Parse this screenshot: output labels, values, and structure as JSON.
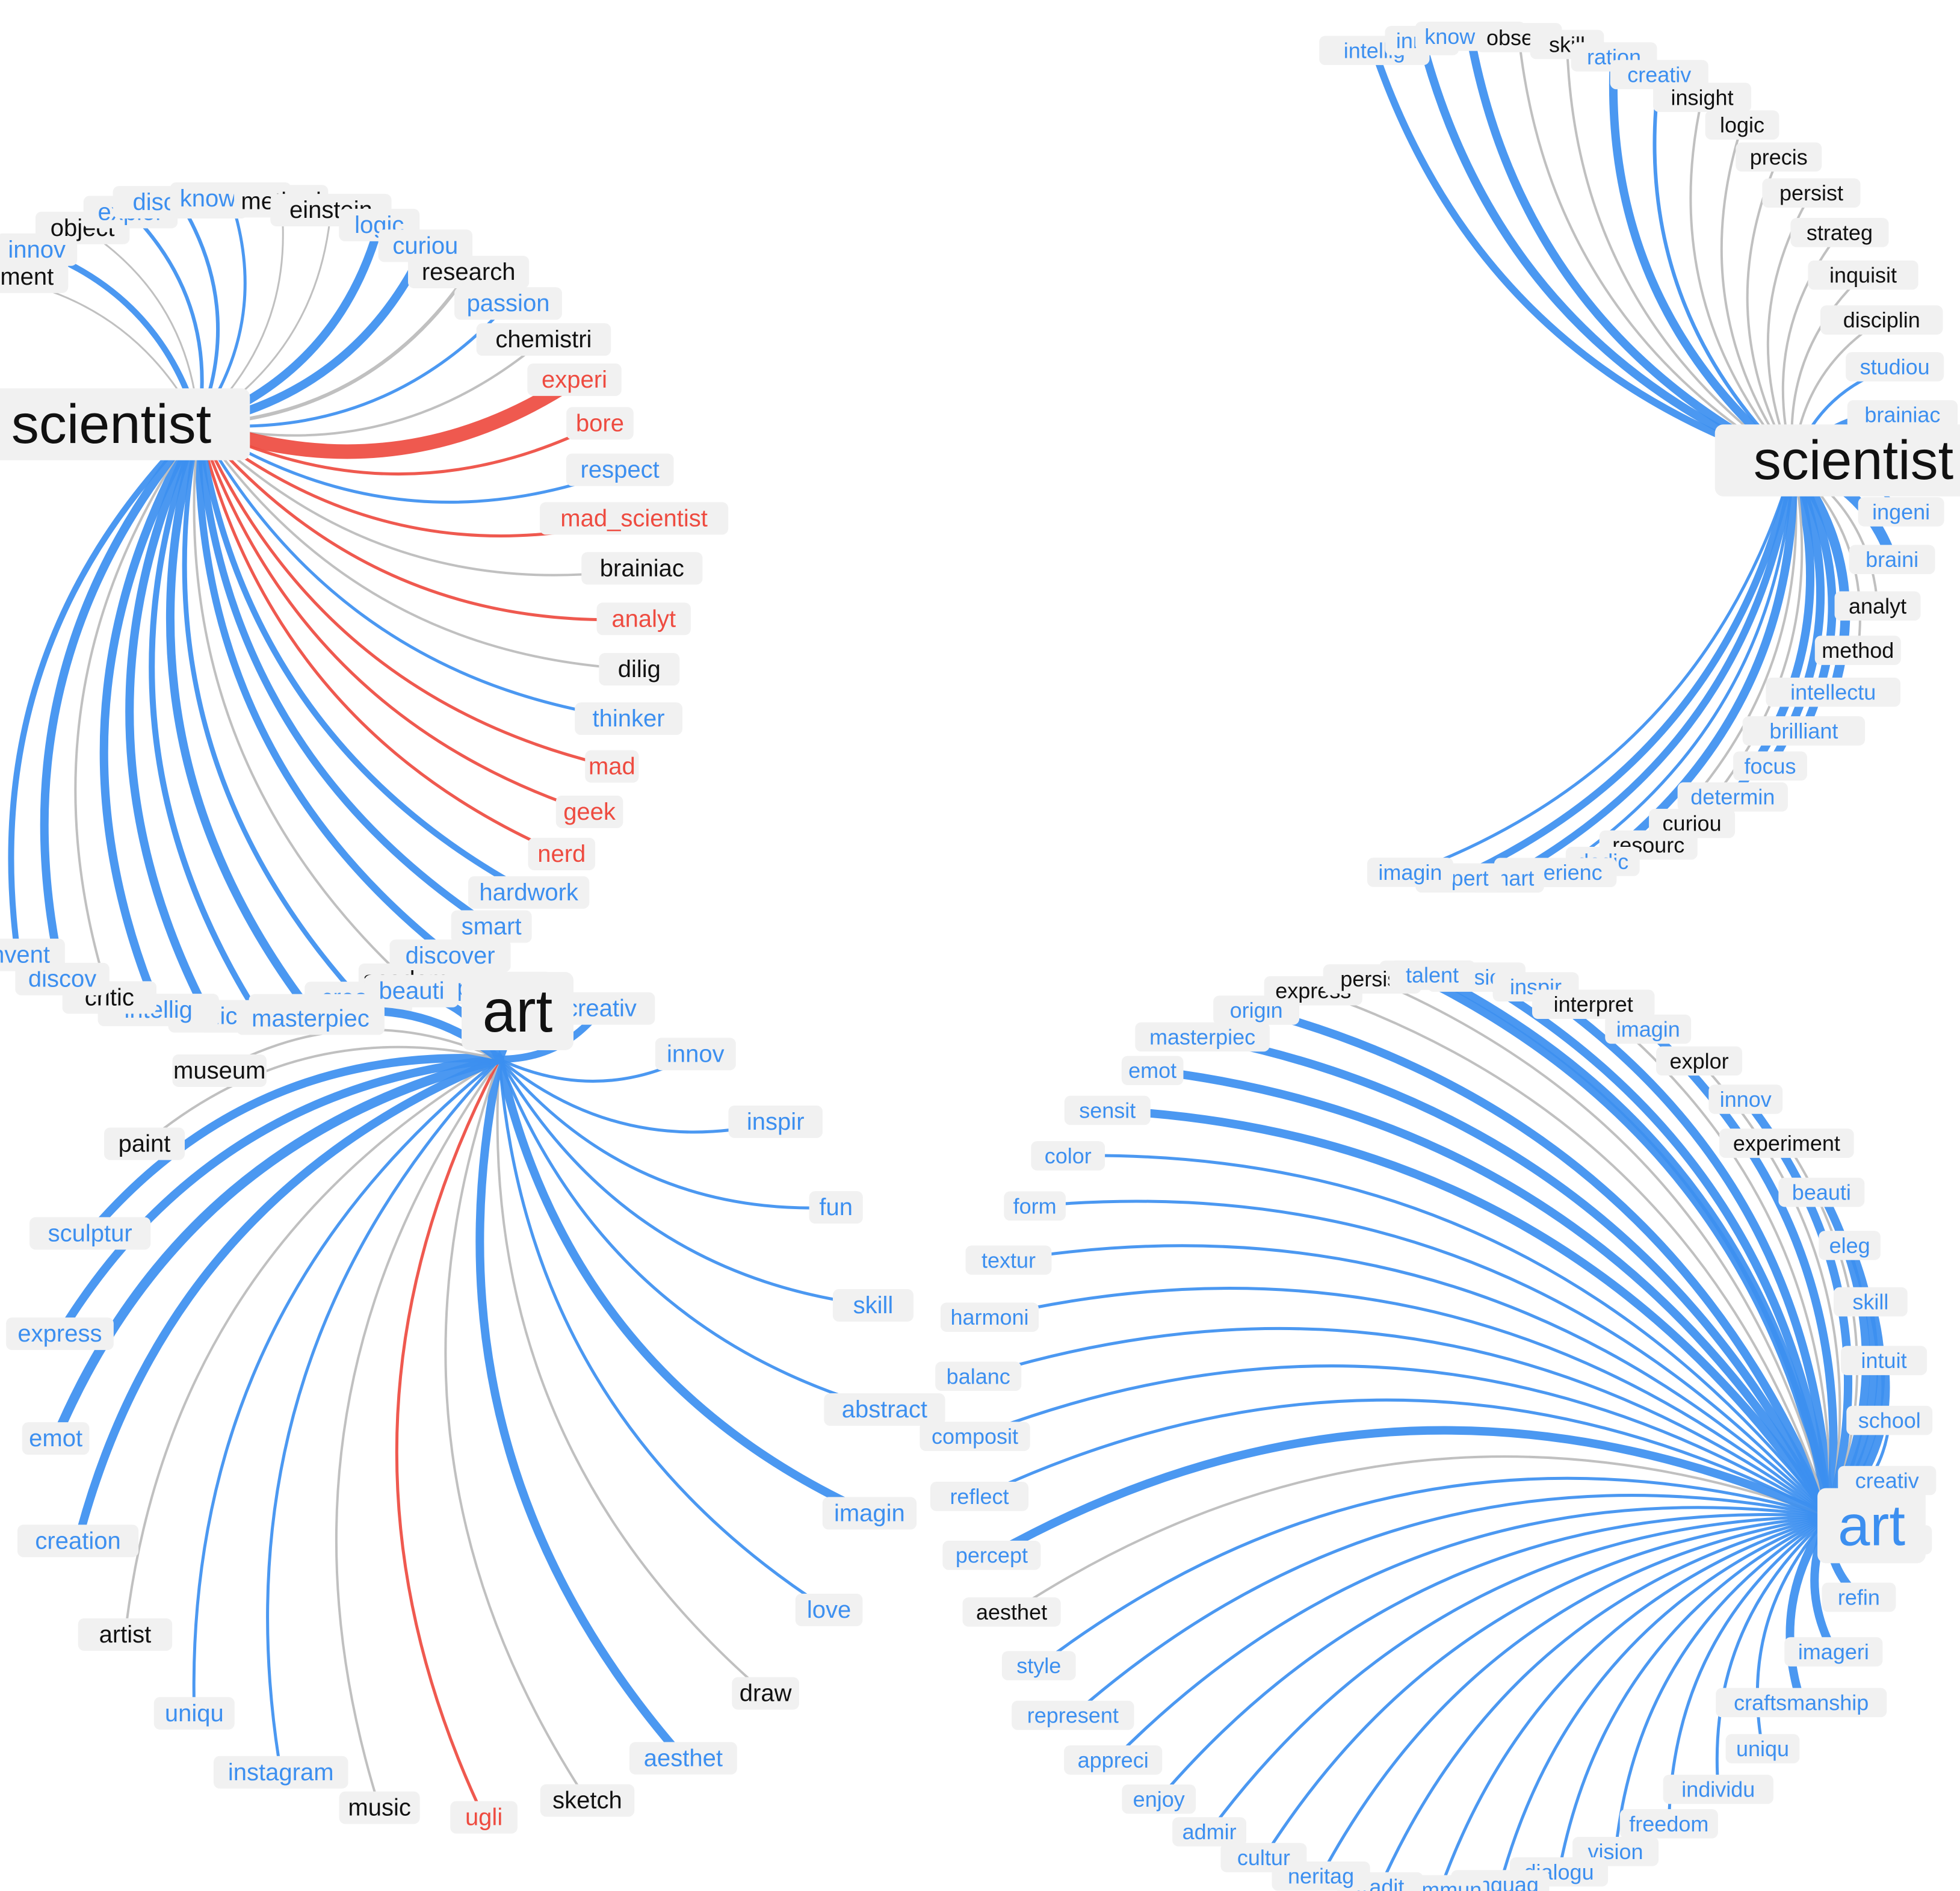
{
  "colors": {
    "positive": "#3c8ff0",
    "negative": "#ee4b40",
    "neutral": "#bdbdbd",
    "text_neutral": "#111111",
    "label_bg": "#f1f1f1"
  },
  "panels": [
    {
      "id": "tl",
      "center": "scientist",
      "center_color": "neutral",
      "words": [
        {
          "t": "experiment",
          "c": "neutral",
          "w": 3
        },
        {
          "t": "innov",
          "c": "positive",
          "w": 10
        },
        {
          "t": "object",
          "c": "neutral",
          "w": 3
        },
        {
          "t": "explor",
          "c": "positive",
          "w": 6
        },
        {
          "t": "discoveri",
          "c": "positive",
          "w": 6
        },
        {
          "t": "knowledg",
          "c": "positive",
          "w": 5
        },
        {
          "t": "method",
          "c": "neutral",
          "w": 3
        },
        {
          "t": "einstein",
          "c": "neutral",
          "w": 3
        },
        {
          "t": "logic",
          "c": "positive",
          "w": 14
        },
        {
          "t": "curiou",
          "c": "positive",
          "w": 14
        },
        {
          "t": "research",
          "c": "neutral",
          "w": 6
        },
        {
          "t": "passion",
          "c": "positive",
          "w": 5
        },
        {
          "t": "chemistri",
          "c": "neutral",
          "w": 4
        },
        {
          "t": "experi",
          "c": "negative",
          "w": 24
        },
        {
          "t": "bore",
          "c": "negative",
          "w": 5
        },
        {
          "t": "respect",
          "c": "positive",
          "w": 5
        },
        {
          "t": "mad_scientist",
          "c": "negative",
          "w": 5
        },
        {
          "t": "brainiac",
          "c": "neutral",
          "w": 4
        },
        {
          "t": "analyt",
          "c": "negative",
          "w": 5
        },
        {
          "t": "dilig",
          "c": "neutral",
          "w": 4
        },
        {
          "t": "thinker",
          "c": "positive",
          "w": 5
        },
        {
          "t": "mad",
          "c": "negative",
          "w": 5
        },
        {
          "t": "geek",
          "c": "negative",
          "w": 5
        },
        {
          "t": "nerd",
          "c": "negative",
          "w": 5
        },
        {
          "t": "hardwork",
          "c": "positive",
          "w": 10
        },
        {
          "t": "smart",
          "c": "positive",
          "w": 12
        },
        {
          "t": "discover",
          "c": "positive",
          "w": 12
        },
        {
          "t": "academ",
          "c": "neutral",
          "w": 4
        },
        {
          "t": "creator",
          "c": "positive",
          "w": 8
        },
        {
          "t": "inventor",
          "c": "positive",
          "w": 14
        },
        {
          "t": "inquisit",
          "c": "positive",
          "w": 10
        },
        {
          "t": "dedic",
          "c": "positive",
          "w": 14
        },
        {
          "t": "intellig",
          "c": "positive",
          "w": 14
        },
        {
          "t": "critic",
          "c": "neutral",
          "w": 4
        },
        {
          "t": "discov",
          "c": "positive",
          "w": 14
        },
        {
          "t": "invent",
          "c": "positive",
          "w": 10
        }
      ]
    },
    {
      "id": "tr",
      "center": "scientist",
      "center_color": "neutral",
      "words": [
        {
          "t": "intellig",
          "c": "positive",
          "w": 12
        },
        {
          "t": "innov",
          "c": "positive",
          "w": 14
        },
        {
          "t": "knowledg",
          "c": "positive",
          "w": 14
        },
        {
          "t": "observ",
          "c": "neutral",
          "w": 4
        },
        {
          "t": "skill",
          "c": "neutral",
          "w": 4
        },
        {
          "t": "ration",
          "c": "positive",
          "w": 14
        },
        {
          "t": "creativ",
          "c": "positive",
          "w": 6
        },
        {
          "t": "insight",
          "c": "neutral",
          "w": 4
        },
        {
          "t": "logic",
          "c": "neutral",
          "w": 4
        },
        {
          "t": "precis",
          "c": "neutral",
          "w": 4
        },
        {
          "t": "persist",
          "c": "neutral",
          "w": 4
        },
        {
          "t": "strateg",
          "c": "neutral",
          "w": 4
        },
        {
          "t": "inquisit",
          "c": "neutral",
          "w": 4
        },
        {
          "t": "disciplin",
          "c": "neutral",
          "w": 4
        },
        {
          "t": "studiou",
          "c": "positive",
          "w": 5
        },
        {
          "t": "brainiac",
          "c": "positive",
          "w": 14
        },
        {
          "t": "effici",
          "c": "positive",
          "w": 6
        },
        {
          "t": "ingeni",
          "c": "positive",
          "w": 6
        },
        {
          "t": "braini",
          "c": "positive",
          "w": 18
        },
        {
          "t": "analyt",
          "c": "neutral",
          "w": 4
        },
        {
          "t": "method",
          "c": "neutral",
          "w": 4
        },
        {
          "t": "intellectu",
          "c": "positive",
          "w": 16
        },
        {
          "t": "brilliant",
          "c": "positive",
          "w": 14
        },
        {
          "t": "focus",
          "c": "positive",
          "w": 14
        },
        {
          "t": "determin",
          "c": "positive",
          "w": 14
        },
        {
          "t": "curiou",
          "c": "neutral",
          "w": 4
        },
        {
          "t": "resourc",
          "c": "neutral",
          "w": 4
        },
        {
          "t": "dedic",
          "c": "positive",
          "w": 14
        },
        {
          "t": "experienc",
          "c": "positive",
          "w": 5
        },
        {
          "t": "smart",
          "c": "positive",
          "w": 12
        },
        {
          "t": "expert",
          "c": "positive",
          "w": 12
        },
        {
          "t": "imagin",
          "c": "positive",
          "w": 5
        }
      ]
    },
    {
      "id": "bl",
      "center": "art",
      "center_color": "neutral",
      "words": [
        {
          "t": "passion",
          "c": "positive",
          "w": 12
        },
        {
          "t": "creativ",
          "c": "positive",
          "w": 12
        },
        {
          "t": "innov",
          "c": "positive",
          "w": 5
        },
        {
          "t": "inspir",
          "c": "positive",
          "w": 5
        },
        {
          "t": "fun",
          "c": "positive",
          "w": 5
        },
        {
          "t": "skill",
          "c": "positive",
          "w": 5
        },
        {
          "t": "abstract",
          "c": "positive",
          "w": 5
        },
        {
          "t": "imagin",
          "c": "positive",
          "w": 14
        },
        {
          "t": "love",
          "c": "positive",
          "w": 5
        },
        {
          "t": "draw",
          "c": "neutral",
          "w": 4
        },
        {
          "t": "aesthet",
          "c": "positive",
          "w": 14
        },
        {
          "t": "sketch",
          "c": "neutral",
          "w": 4
        },
        {
          "t": "ugli",
          "c": "negative",
          "w": 5
        },
        {
          "t": "music",
          "c": "neutral",
          "w": 4
        },
        {
          "t": "instagram",
          "c": "positive",
          "w": 5
        },
        {
          "t": "uniqu",
          "c": "positive",
          "w": 5
        },
        {
          "t": "artist",
          "c": "neutral",
          "w": 4
        },
        {
          "t": "creation",
          "c": "positive",
          "w": 14
        },
        {
          "t": "emot",
          "c": "positive",
          "w": 16
        },
        {
          "t": "express",
          "c": "positive",
          "w": 14
        },
        {
          "t": "sculptur",
          "c": "positive",
          "w": 14
        },
        {
          "t": "paint",
          "c": "neutral",
          "w": 4
        },
        {
          "t": "museum",
          "c": "neutral",
          "w": 4
        },
        {
          "t": "masterpiec",
          "c": "positive",
          "w": 14
        },
        {
          "t": "beauti",
          "c": "positive",
          "w": 14
        }
      ]
    },
    {
      "id": "br",
      "center": "art",
      "center_color": "positive",
      "words": [
        {
          "t": "dedic",
          "c": "positive",
          "w": 14
        },
        {
          "t": "passion",
          "c": "positive",
          "w": 14
        },
        {
          "t": "inspir",
          "c": "positive",
          "w": 14
        },
        {
          "t": "interpret",
          "c": "neutral",
          "w": 4
        },
        {
          "t": "imagin",
          "c": "positive",
          "w": 14
        },
        {
          "t": "explor",
          "c": "neutral",
          "w": 4
        },
        {
          "t": "innov",
          "c": "positive",
          "w": 14
        },
        {
          "t": "experiment",
          "c": "neutral",
          "w": 4
        },
        {
          "t": "beauti",
          "c": "positive",
          "w": 14
        },
        {
          "t": "eleg",
          "c": "positive",
          "w": 14
        },
        {
          "t": "skill",
          "c": "positive",
          "w": 14
        },
        {
          "t": "intuit",
          "c": "positive",
          "w": 14
        },
        {
          "t": "school",
          "c": "positive",
          "w": 5
        },
        {
          "t": "creativ",
          "c": "positive",
          "w": 5
        },
        {
          "t": "creatist",
          "c": "positive",
          "w": 5
        },
        {
          "t": "refin",
          "c": "positive",
          "w": 14
        },
        {
          "t": "imageri",
          "c": "positive",
          "w": 14
        },
        {
          "t": "craftsmanship",
          "c": "positive",
          "w": 14
        },
        {
          "t": "uniqu",
          "c": "positive",
          "w": 5
        },
        {
          "t": "individu",
          "c": "positive",
          "w": 5
        },
        {
          "t": "freedom",
          "c": "positive",
          "w": 5
        },
        {
          "t": "vision",
          "c": "positive",
          "w": 5
        },
        {
          "t": "dialogu",
          "c": "positive",
          "w": 5
        },
        {
          "t": "languag",
          "c": "positive",
          "w": 5
        },
        {
          "t": "commun",
          "c": "positive",
          "w": 5
        },
        {
          "t": "tradit",
          "c": "positive",
          "w": 5
        },
        {
          "t": "heritag",
          "c": "positive",
          "w": 5
        },
        {
          "t": "cultur",
          "c": "positive",
          "w": 5
        },
        {
          "t": "admir",
          "c": "positive",
          "w": 5
        },
        {
          "t": "enjoy",
          "c": "positive",
          "w": 5
        },
        {
          "t": "appreci",
          "c": "positive",
          "w": 5
        },
        {
          "t": "represent",
          "c": "positive",
          "w": 5
        },
        {
          "t": "style",
          "c": "positive",
          "w": 5
        },
        {
          "t": "aesthet",
          "c": "neutral",
          "w": 4
        },
        {
          "t": "percept",
          "c": "positive",
          "w": 14
        },
        {
          "t": "reflect",
          "c": "positive",
          "w": 5
        },
        {
          "t": "composit",
          "c": "positive",
          "w": 5
        },
        {
          "t": "balanc",
          "c": "positive",
          "w": 5
        },
        {
          "t": "harmoni",
          "c": "positive",
          "w": 5
        },
        {
          "t": "textur",
          "c": "positive",
          "w": 5
        },
        {
          "t": "form",
          "c": "positive",
          "w": 5
        },
        {
          "t": "color",
          "c": "positive",
          "w": 5
        },
        {
          "t": "sensit",
          "c": "positive",
          "w": 14
        },
        {
          "t": "emot",
          "c": "positive",
          "w": 14
        },
        {
          "t": "masterpiec",
          "c": "positive",
          "w": 14
        },
        {
          "t": "origin",
          "c": "positive",
          "w": 14
        },
        {
          "t": "express",
          "c": "neutral",
          "w": 4
        },
        {
          "t": "persist",
          "c": "neutral",
          "w": 4
        },
        {
          "t": "talent",
          "c": "positive",
          "w": 14
        }
      ]
    }
  ]
}
